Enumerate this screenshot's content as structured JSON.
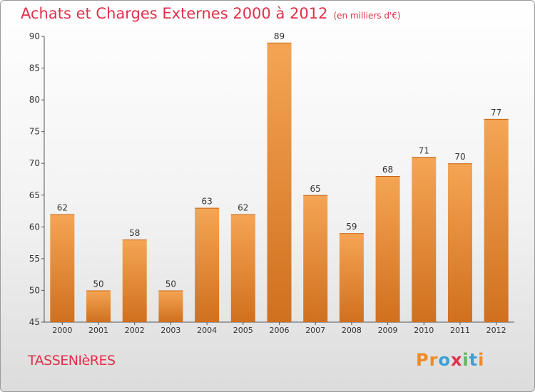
{
  "title": "Achats et Charges Externes 2000 à 2012",
  "subtitle": "(en milliers d'€)",
  "commune": "TASSENIèRES",
  "logo": {
    "text": "Proxiti",
    "letters": [
      "P",
      "r",
      "o",
      "x",
      "i",
      "t",
      "i"
    ],
    "colors": [
      "#f08a24",
      "#f08a24",
      "#3aa0d8",
      "#e0304a",
      "#5cb85c",
      "#3aa0d8",
      "#f08a24"
    ]
  },
  "colors": {
    "title": "#e0304a",
    "bar_light": "#f5a554",
    "bar_dark": "#d0701e"
  },
  "chart_data": {
    "type": "bar",
    "title": "Achats et Charges Externes 2000 à 2012",
    "subtitle": "(en milliers d'€)",
    "categories": [
      "2000",
      "2001",
      "2002",
      "2003",
      "2004",
      "2005",
      "2006",
      "2007",
      "2008",
      "2009",
      "2010",
      "2011",
      "2012"
    ],
    "values": [
      62,
      50,
      58,
      50,
      63,
      62,
      89,
      65,
      59,
      68,
      71,
      70,
      77
    ],
    "ylim": [
      45,
      90
    ],
    "yticks": [
      45,
      50,
      55,
      60,
      65,
      70,
      75,
      80,
      85,
      90
    ],
    "grid": false,
    "legend": "none"
  }
}
